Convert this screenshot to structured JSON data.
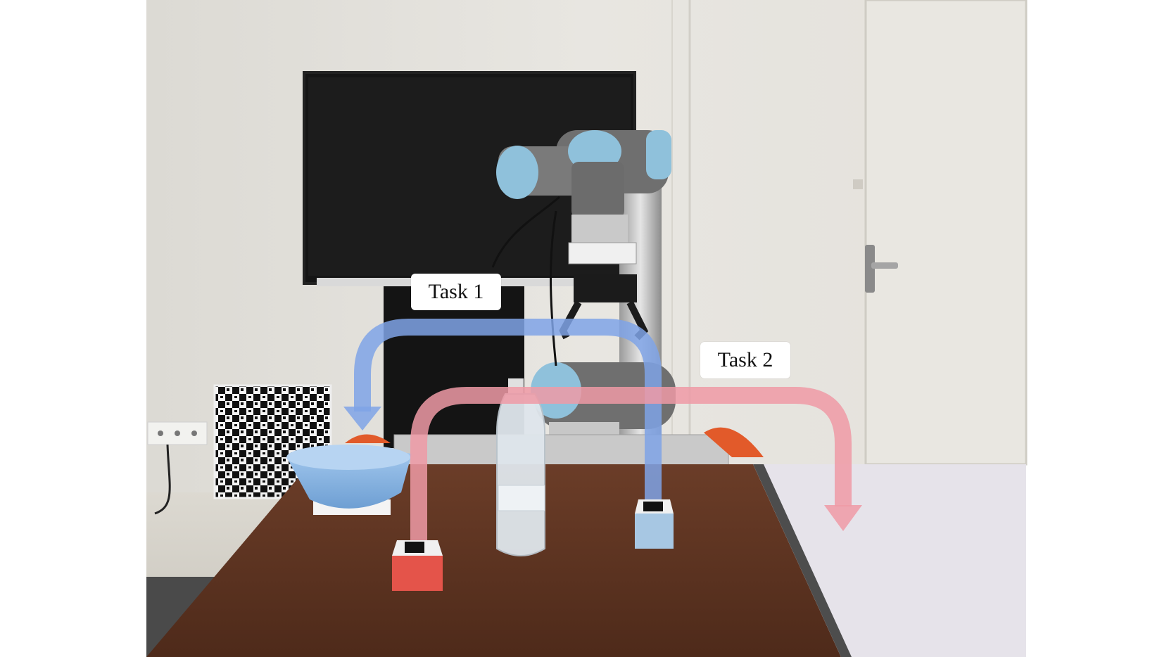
{
  "annotations": {
    "task1": {
      "label": "Task 1",
      "color": "#7fa3e6"
    },
    "task2": {
      "label": "Task 2",
      "color": "#ee9aa6"
    }
  },
  "scene": {
    "wall_color": "#e6e4df",
    "door_color": "#e9e7e1",
    "table_color": "#5e3422",
    "white_table_color": "#e6e3ea",
    "bowl_color": "#8ab8e6",
    "red_block_color": "#e4544a",
    "blue_block_color": "#a7c7e3",
    "robot_cap_color": "#8fc1db"
  },
  "icons": [
    "robot-arm-icon",
    "gripper-icon",
    "water-bottle-icon",
    "bowl-icon",
    "calibration-board-icon",
    "door-handle-icon",
    "wall-outlet-icon"
  ]
}
